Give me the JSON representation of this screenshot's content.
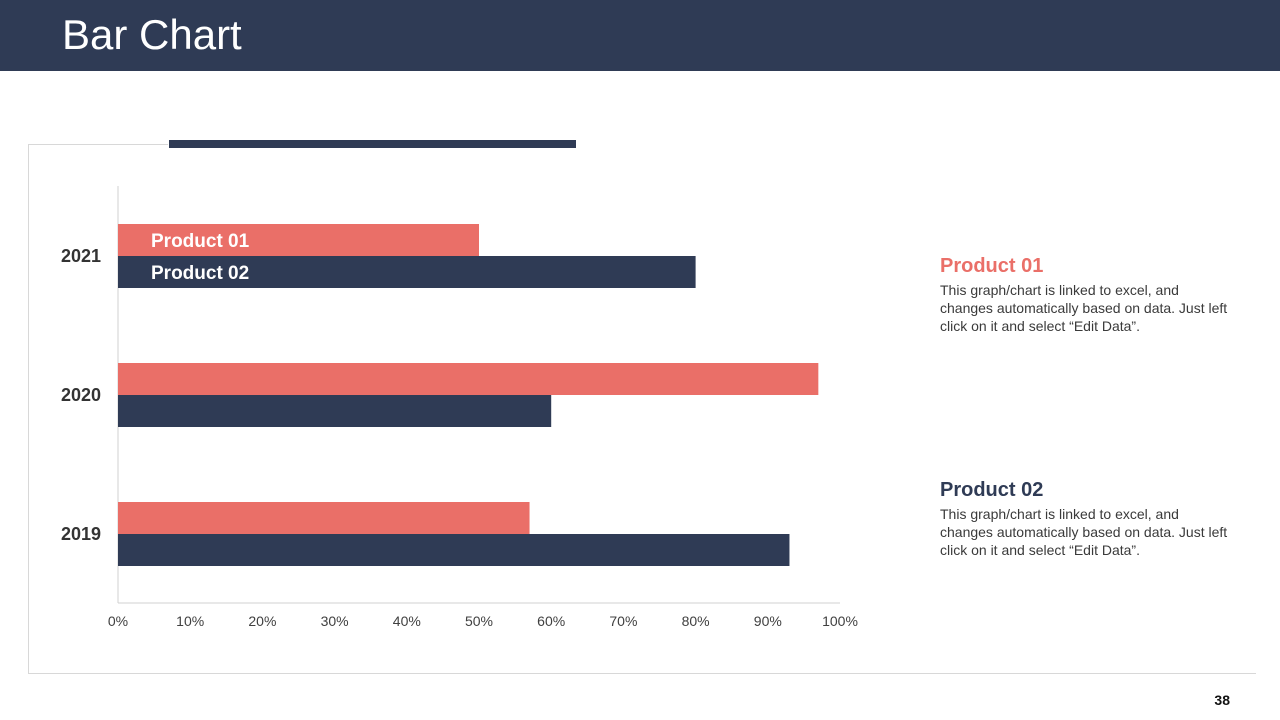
{
  "header": {
    "title": "Bar Chart"
  },
  "colors": {
    "header_bg": "#2f3b55",
    "product01": "#ea6f68",
    "product02": "#2f3b55"
  },
  "chart_data": {
    "type": "bar",
    "orientation": "horizontal",
    "categories": [
      "2021",
      "2020",
      "2019"
    ],
    "series": [
      {
        "name": "Product 01",
        "values": [
          50,
          97,
          57
        ]
      },
      {
        "name": "Product 02",
        "values": [
          80,
          60,
          93
        ]
      }
    ],
    "xlim": [
      0,
      100
    ],
    "xticks": [
      "0%",
      "10%",
      "20%",
      "30%",
      "40%",
      "50%",
      "60%",
      "70%",
      "80%",
      "90%",
      "100%"
    ],
    "grid": false,
    "data_labels": [
      "Product 01",
      "Product 02"
    ]
  },
  "legend": {
    "product01": {
      "title": "Product 01",
      "desc": "This graph/chart is linked to excel, and changes automatically based on data. Just left click on it and select “Edit Data”."
    },
    "product02": {
      "title": "Product 02",
      "desc": "This graph/chart is linked to excel, and changes automatically based on data. Just left click on it and select “Edit Data”."
    }
  },
  "footer": {
    "page_number": "38"
  }
}
